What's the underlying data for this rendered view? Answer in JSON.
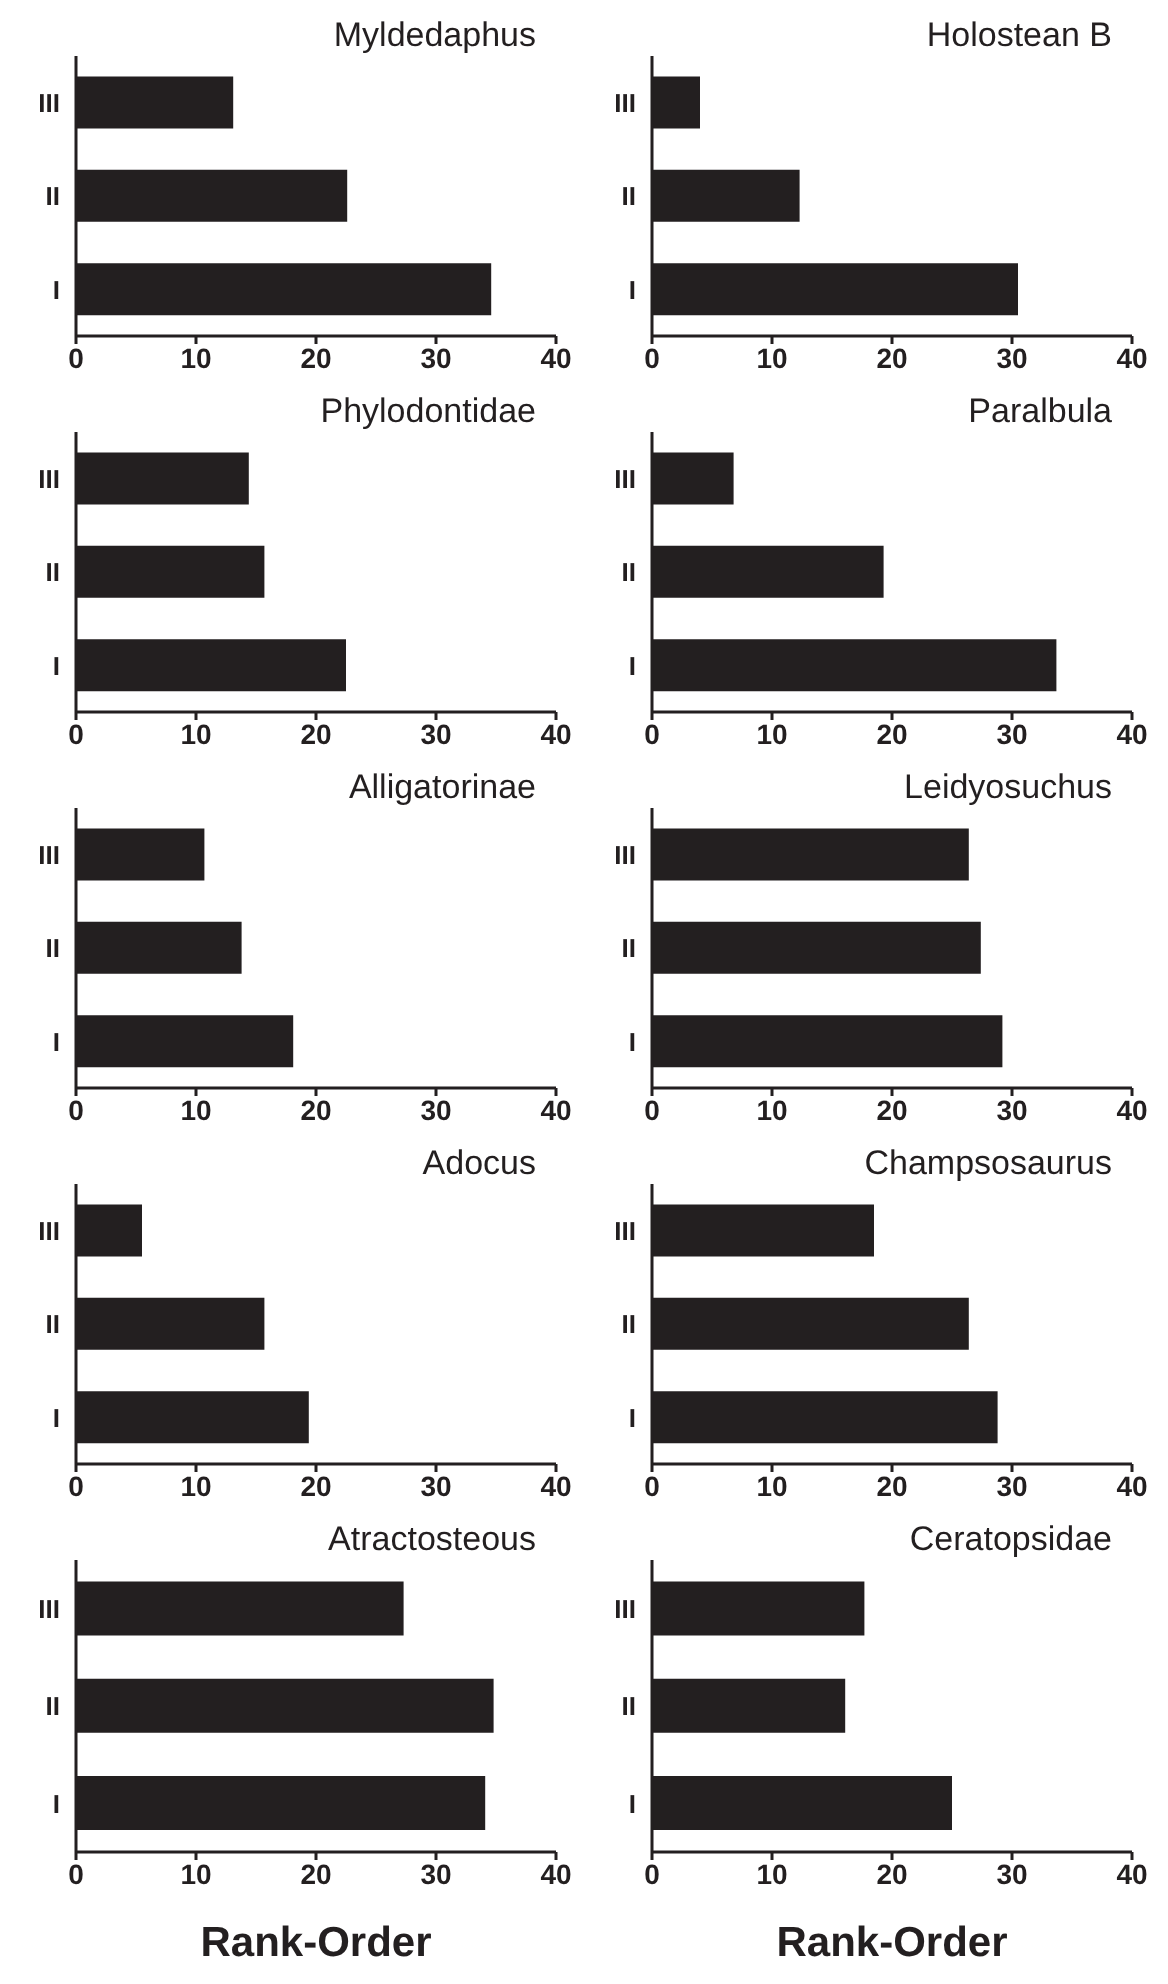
{
  "chart_data": [
    {
      "type": "bar",
      "orientation": "horizontal",
      "title": "Myldedaphus",
      "categories": [
        "III",
        "II",
        "I"
      ],
      "values": [
        13.1,
        22.6,
        34.6
      ],
      "color": "#231f20",
      "xlim": [
        0,
        40
      ],
      "xticks": [
        0,
        10,
        20,
        30,
        40
      ]
    },
    {
      "type": "bar",
      "orientation": "horizontal",
      "title": "Holostean B",
      "categories": [
        "III",
        "II",
        "I"
      ],
      "values": [
        4.0,
        12.3,
        30.5
      ],
      "color": "#231f20",
      "xlim": [
        0,
        40
      ],
      "xticks": [
        0,
        10,
        20,
        30,
        40
      ]
    },
    {
      "type": "bar",
      "orientation": "horizontal",
      "title": "Phylodontidae",
      "categories": [
        "III",
        "II",
        "I"
      ],
      "values": [
        14.4,
        15.7,
        22.5
      ],
      "color": "#231f20",
      "xlim": [
        0,
        40
      ],
      "xticks": [
        0,
        10,
        20,
        30,
        40
      ]
    },
    {
      "type": "bar",
      "orientation": "horizontal",
      "title": "Paralbula",
      "categories": [
        "III",
        "II",
        "I"
      ],
      "values": [
        6.8,
        19.3,
        33.7
      ],
      "color": "#231f20",
      "xlim": [
        0,
        40
      ],
      "xticks": [
        0,
        10,
        20,
        30,
        40
      ]
    },
    {
      "type": "bar",
      "orientation": "horizontal",
      "title": "Alligatorinae",
      "categories": [
        "III",
        "II",
        "I"
      ],
      "values": [
        10.7,
        13.8,
        18.1
      ],
      "color": "#231f20",
      "xlim": [
        0,
        40
      ],
      "xticks": [
        0,
        10,
        20,
        30,
        40
      ]
    },
    {
      "type": "bar",
      "orientation": "horizontal",
      "title": "Leidyosuchus",
      "categories": [
        "III",
        "II",
        "I"
      ],
      "values": [
        26.4,
        27.4,
        29.2
      ],
      "color": "#231f20",
      "xlim": [
        0,
        40
      ],
      "xticks": [
        0,
        10,
        20,
        30,
        40
      ]
    },
    {
      "type": "bar",
      "orientation": "horizontal",
      "title": "Adocus",
      "categories": [
        "III",
        "II",
        "I"
      ],
      "values": [
        5.5,
        15.7,
        19.4
      ],
      "color": "#231f20",
      "xlim": [
        0,
        40
      ],
      "xticks": [
        0,
        10,
        20,
        30,
        40
      ]
    },
    {
      "type": "bar",
      "orientation": "horizontal",
      "title": "Champsosaurus",
      "categories": [
        "III",
        "II",
        "I"
      ],
      "values": [
        18.5,
        26.4,
        28.8
      ],
      "color": "#231f20",
      "xlim": [
        0,
        40
      ],
      "xticks": [
        0,
        10,
        20,
        30,
        40
      ]
    },
    {
      "type": "bar",
      "orientation": "horizontal",
      "title": "Atractosteous",
      "categories": [
        "III",
        "II",
        "I"
      ],
      "values": [
        27.3,
        34.8,
        34.1
      ],
      "color": "#231f20",
      "xlim": [
        0,
        40
      ],
      "xticks": [
        0,
        10,
        20,
        30,
        40
      ],
      "xlabel": "Rank-Order"
    },
    {
      "type": "bar",
      "orientation": "horizontal",
      "title": "Ceratopsidae",
      "categories": [
        "III",
        "II",
        "I"
      ],
      "values": [
        17.7,
        16.1,
        25.0
      ],
      "color": "#231f20",
      "xlim": [
        0,
        40
      ],
      "xticks": [
        0,
        10,
        20,
        30,
        40
      ],
      "xlabel": "Rank-Order"
    }
  ]
}
